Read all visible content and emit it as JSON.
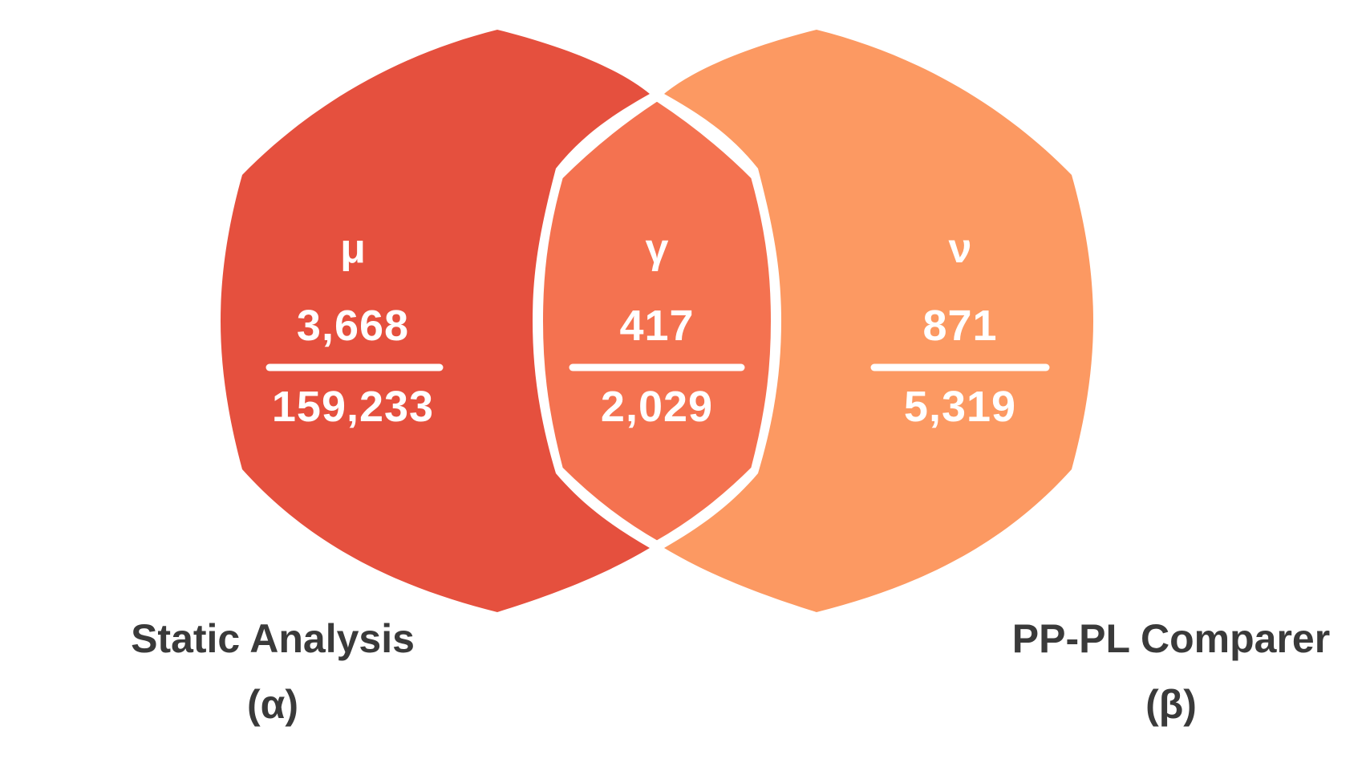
{
  "colors": {
    "left_set": "#e5503e",
    "right_set": "#fc9962",
    "overlap": "#f47250",
    "divider": "#ffffff",
    "text_light": "#ffffff",
    "text_dark": "#3a3a3a"
  },
  "sets": [
    {
      "id": "left",
      "label": "Static Analysis",
      "symbol": "(α)"
    },
    {
      "id": "right",
      "label": "PP-PL Comparer",
      "symbol": "(β)"
    }
  ],
  "regions": {
    "left_only": {
      "symbol": "μ",
      "numerator": "3,668",
      "denominator": "159,233"
    },
    "intersection": {
      "symbol": "γ",
      "numerator": "417",
      "denominator": "2,029"
    },
    "right_only": {
      "symbol": "ν",
      "numerator": "871",
      "denominator": "5,319"
    }
  }
}
